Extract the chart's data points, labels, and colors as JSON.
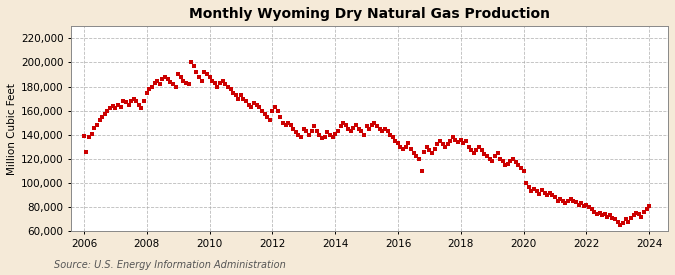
{
  "title": "Monthly Wyoming Dry Natural Gas Production",
  "ylabel": "Million Cubic Feet",
  "source": "Source: U.S. Energy Information Administration",
  "background_color": "#f5ead8",
  "plot_bg_color": "#ffffff",
  "dot_color": "#cc0000",
  "dot_size": 5,
  "ylim": [
    60000,
    230000
  ],
  "yticks": [
    60000,
    80000,
    100000,
    120000,
    140000,
    160000,
    180000,
    200000,
    220000
  ],
  "xlim_start": 2005.6,
  "xlim_end": 2024.6,
  "xtick_years": [
    2006,
    2008,
    2010,
    2012,
    2014,
    2016,
    2018,
    2020,
    2022,
    2024
  ],
  "data": [
    [
      2006.0,
      139000
    ],
    [
      2006.08,
      126000
    ],
    [
      2006.17,
      138000
    ],
    [
      2006.25,
      141000
    ],
    [
      2006.33,
      146000
    ],
    [
      2006.42,
      148000
    ],
    [
      2006.5,
      152000
    ],
    [
      2006.58,
      155000
    ],
    [
      2006.67,
      157000
    ],
    [
      2006.75,
      160000
    ],
    [
      2006.83,
      162000
    ],
    [
      2006.92,
      164000
    ],
    [
      2007.0,
      162000
    ],
    [
      2007.08,
      165000
    ],
    [
      2007.17,
      163000
    ],
    [
      2007.25,
      168000
    ],
    [
      2007.33,
      167000
    ],
    [
      2007.42,
      165000
    ],
    [
      2007.5,
      168000
    ],
    [
      2007.58,
      170000
    ],
    [
      2007.67,
      168000
    ],
    [
      2007.75,
      165000
    ],
    [
      2007.83,
      162000
    ],
    [
      2007.92,
      168000
    ],
    [
      2008.0,
      175000
    ],
    [
      2008.08,
      178000
    ],
    [
      2008.17,
      180000
    ],
    [
      2008.25,
      183000
    ],
    [
      2008.33,
      185000
    ],
    [
      2008.42,
      182000
    ],
    [
      2008.5,
      186000
    ],
    [
      2008.58,
      188000
    ],
    [
      2008.67,
      186000
    ],
    [
      2008.75,
      184000
    ],
    [
      2008.83,
      182000
    ],
    [
      2008.92,
      180000
    ],
    [
      2009.0,
      190000
    ],
    [
      2009.08,
      188000
    ],
    [
      2009.17,
      185000
    ],
    [
      2009.25,
      183000
    ],
    [
      2009.33,
      182000
    ],
    [
      2009.42,
      200000
    ],
    [
      2009.5,
      197000
    ],
    [
      2009.58,
      192000
    ],
    [
      2009.67,
      188000
    ],
    [
      2009.75,
      185000
    ],
    [
      2009.83,
      192000
    ],
    [
      2009.92,
      190000
    ],
    [
      2010.0,
      188000
    ],
    [
      2010.08,
      185000
    ],
    [
      2010.17,
      183000
    ],
    [
      2010.25,
      180000
    ],
    [
      2010.33,
      183000
    ],
    [
      2010.42,
      185000
    ],
    [
      2010.5,
      182000
    ],
    [
      2010.58,
      180000
    ],
    [
      2010.67,
      178000
    ],
    [
      2010.75,
      175000
    ],
    [
      2010.83,
      173000
    ],
    [
      2010.92,
      170000
    ],
    [
      2011.0,
      173000
    ],
    [
      2011.08,
      170000
    ],
    [
      2011.17,
      168000
    ],
    [
      2011.25,
      165000
    ],
    [
      2011.33,
      163000
    ],
    [
      2011.42,
      166000
    ],
    [
      2011.5,
      165000
    ],
    [
      2011.58,
      163000
    ],
    [
      2011.67,
      160000
    ],
    [
      2011.75,
      157000
    ],
    [
      2011.83,
      155000
    ],
    [
      2011.92,
      152000
    ],
    [
      2012.0,
      160000
    ],
    [
      2012.08,
      163000
    ],
    [
      2012.17,
      160000
    ],
    [
      2012.25,
      155000
    ],
    [
      2012.33,
      150000
    ],
    [
      2012.42,
      148000
    ],
    [
      2012.5,
      150000
    ],
    [
      2012.58,
      148000
    ],
    [
      2012.67,
      145000
    ],
    [
      2012.75,
      142000
    ],
    [
      2012.83,
      140000
    ],
    [
      2012.92,
      138000
    ],
    [
      2013.0,
      145000
    ],
    [
      2013.08,
      143000
    ],
    [
      2013.17,
      140000
    ],
    [
      2013.25,
      143000
    ],
    [
      2013.33,
      147000
    ],
    [
      2013.42,
      143000
    ],
    [
      2013.5,
      140000
    ],
    [
      2013.58,
      137000
    ],
    [
      2013.67,
      138000
    ],
    [
      2013.75,
      142000
    ],
    [
      2013.83,
      140000
    ],
    [
      2013.92,
      138000
    ],
    [
      2014.0,
      141000
    ],
    [
      2014.08,
      143000
    ],
    [
      2014.17,
      147000
    ],
    [
      2014.25,
      150000
    ],
    [
      2014.33,
      148000
    ],
    [
      2014.42,
      145000
    ],
    [
      2014.5,
      143000
    ],
    [
      2014.58,
      146000
    ],
    [
      2014.67,
      148000
    ],
    [
      2014.75,
      145000
    ],
    [
      2014.83,
      143000
    ],
    [
      2014.92,
      140000
    ],
    [
      2015.0,
      147000
    ],
    [
      2015.08,
      145000
    ],
    [
      2015.17,
      148000
    ],
    [
      2015.25,
      150000
    ],
    [
      2015.33,
      147000
    ],
    [
      2015.42,
      145000
    ],
    [
      2015.5,
      143000
    ],
    [
      2015.58,
      145000
    ],
    [
      2015.67,
      143000
    ],
    [
      2015.75,
      140000
    ],
    [
      2015.83,
      138000
    ],
    [
      2015.92,
      135000
    ],
    [
      2016.0,
      133000
    ],
    [
      2016.08,
      130000
    ],
    [
      2016.17,
      128000
    ],
    [
      2016.25,
      130000
    ],
    [
      2016.33,
      133000
    ],
    [
      2016.42,
      128000
    ],
    [
      2016.5,
      125000
    ],
    [
      2016.58,
      122000
    ],
    [
      2016.67,
      120000
    ],
    [
      2016.75,
      110000
    ],
    [
      2016.83,
      126000
    ],
    [
      2016.92,
      130000
    ],
    [
      2017.0,
      127000
    ],
    [
      2017.08,
      125000
    ],
    [
      2017.17,
      128000
    ],
    [
      2017.25,
      132000
    ],
    [
      2017.33,
      135000
    ],
    [
      2017.42,
      132000
    ],
    [
      2017.5,
      130000
    ],
    [
      2017.58,
      132000
    ],
    [
      2017.67,
      135000
    ],
    [
      2017.75,
      138000
    ],
    [
      2017.83,
      136000
    ],
    [
      2017.92,
      134000
    ],
    [
      2018.0,
      136000
    ],
    [
      2018.08,
      133000
    ],
    [
      2018.17,
      135000
    ],
    [
      2018.25,
      130000
    ],
    [
      2018.33,
      127000
    ],
    [
      2018.42,
      125000
    ],
    [
      2018.5,
      127000
    ],
    [
      2018.58,
      130000
    ],
    [
      2018.67,
      127000
    ],
    [
      2018.75,
      124000
    ],
    [
      2018.83,
      122000
    ],
    [
      2018.92,
      120000
    ],
    [
      2019.0,
      118000
    ],
    [
      2019.08,
      122000
    ],
    [
      2019.17,
      125000
    ],
    [
      2019.25,
      120000
    ],
    [
      2019.33,
      118000
    ],
    [
      2019.42,
      115000
    ],
    [
      2019.5,
      116000
    ],
    [
      2019.58,
      118000
    ],
    [
      2019.67,
      120000
    ],
    [
      2019.75,
      117000
    ],
    [
      2019.83,
      115000
    ],
    [
      2019.92,
      112000
    ],
    [
      2020.0,
      110000
    ],
    [
      2020.08,
      100000
    ],
    [
      2020.17,
      97000
    ],
    [
      2020.25,
      93000
    ],
    [
      2020.33,
      95000
    ],
    [
      2020.42,
      93000
    ],
    [
      2020.5,
      91000
    ],
    [
      2020.58,
      94000
    ],
    [
      2020.67,
      92000
    ],
    [
      2020.75,
      90000
    ],
    [
      2020.83,
      92000
    ],
    [
      2020.92,
      90000
    ],
    [
      2021.0,
      88000
    ],
    [
      2021.08,
      85000
    ],
    [
      2021.17,
      87000
    ],
    [
      2021.25,
      85000
    ],
    [
      2021.33,
      83000
    ],
    [
      2021.42,
      85000
    ],
    [
      2021.5,
      87000
    ],
    [
      2021.58,
      85000
    ],
    [
      2021.67,
      84000
    ],
    [
      2021.75,
      82000
    ],
    [
      2021.83,
      83000
    ],
    [
      2021.92,
      81000
    ],
    [
      2022.0,
      82000
    ],
    [
      2022.08,
      80000
    ],
    [
      2022.17,
      78000
    ],
    [
      2022.25,
      76000
    ],
    [
      2022.33,
      74000
    ],
    [
      2022.42,
      75000
    ],
    [
      2022.5,
      73000
    ],
    [
      2022.58,
      74000
    ],
    [
      2022.67,
      72000
    ],
    [
      2022.75,
      73000
    ],
    [
      2022.83,
      71000
    ],
    [
      2022.92,
      70000
    ],
    [
      2023.0,
      68000
    ],
    [
      2023.08,
      65000
    ],
    [
      2023.17,
      67000
    ],
    [
      2023.25,
      70000
    ],
    [
      2023.33,
      68000
    ],
    [
      2023.42,
      71000
    ],
    [
      2023.5,
      73000
    ],
    [
      2023.58,
      75000
    ],
    [
      2023.67,
      74000
    ],
    [
      2023.75,
      72000
    ],
    [
      2023.83,
      76000
    ],
    [
      2023.92,
      78000
    ],
    [
      2024.0,
      81000
    ]
  ]
}
